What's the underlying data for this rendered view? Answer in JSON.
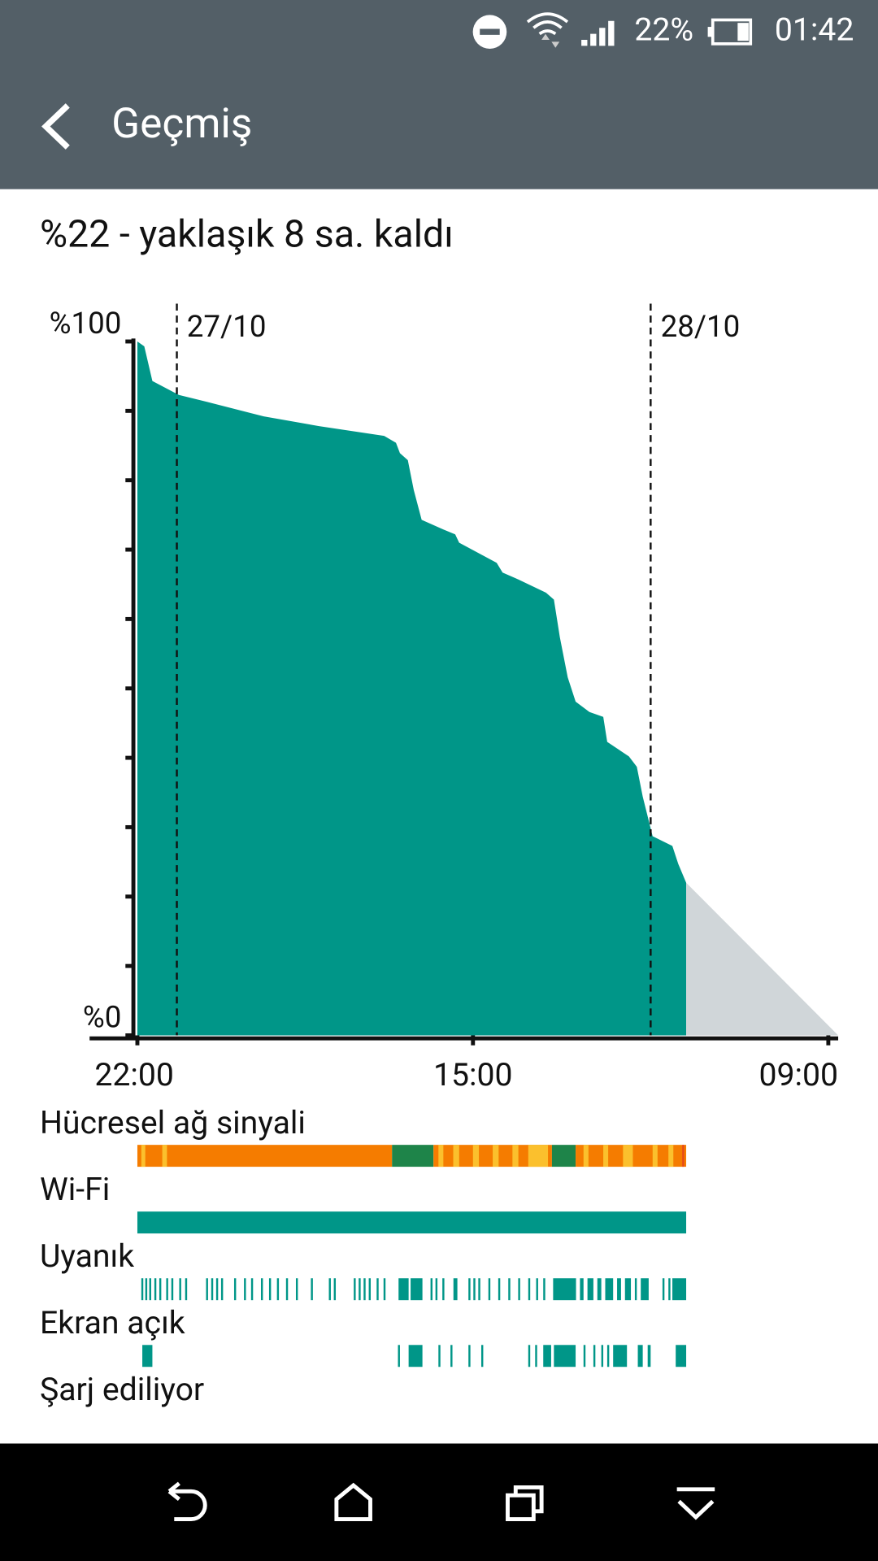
{
  "status_bar": {
    "battery": "22%",
    "time": "01:42"
  },
  "header": {
    "title": "Geçmiş"
  },
  "summary": "%22 - yaklaşık 8 sa. kaldı",
  "chart_data": {
    "type": "area",
    "series": [
      {
        "color": "#009688",
        "x": [
          0,
          0.35,
          0.76,
          2.1,
          3.8,
          6.4,
          9.2,
          12.5,
          13.1,
          13.3,
          13.7,
          14.0,
          14.4,
          15.5,
          16.1,
          16.3,
          18.2,
          18.5,
          19.3,
          20.7,
          21.1,
          21.4,
          21.8,
          22.2,
          22.9,
          23.6,
          23.8,
          24.9,
          25.3,
          25.6,
          26.1,
          27.1,
          27.4,
          27.8
        ],
        "values": [
          100,
          99.3,
          94.3,
          92.3,
          91.1,
          89.2,
          87.8,
          86.4,
          85.4,
          83.9,
          82.9,
          78.6,
          74.3,
          72.9,
          72.2,
          71.0,
          68.1,
          66.7,
          65.7,
          63.8,
          62.8,
          57.4,
          51.6,
          48.1,
          46.6,
          45.9,
          42.3,
          40.2,
          38.7,
          34.4,
          28.7,
          27.3,
          24.7,
          22
        ]
      },
      {
        "color": "#d0d6d9",
        "x": [
          27.8,
          35.5
        ],
        "values": [
          22,
          0
        ]
      }
    ],
    "xlim": [
      0,
      35.5
    ],
    "ylim": [
      0,
      100
    ],
    "xticks": [
      {
        "value": 0,
        "label": "22:00"
      },
      {
        "value": 17,
        "label": "15:00"
      },
      {
        "value": 35,
        "label": "09:00"
      }
    ],
    "yticks": [
      {
        "value": 0,
        "label": "%0"
      },
      {
        "value": 100,
        "label": "%100"
      }
    ],
    "minor_yticks": [
      10,
      20,
      30,
      40,
      50,
      60,
      70,
      80,
      90
    ],
    "date_markers": [
      {
        "value": 2,
        "label": "27/10"
      },
      {
        "value": 26,
        "label": "28/10"
      }
    ],
    "tracks": [
      {
        "label": "Hücresel ağ sinyali",
        "segments": [
          [
            0,
            12.9
          ],
          [
            12.9,
            15.0
          ],
          [
            15.0,
            21.0
          ],
          [
            21.0,
            22.2
          ],
          [
            22.2,
            27.8
          ],
          [
            0.2,
            0.4
          ],
          [
            1.26,
            1.5
          ],
          [
            15.25,
            15.5
          ],
          [
            16.0,
            16.3
          ],
          [
            17.0,
            17.3
          ],
          [
            18.0,
            18.3
          ],
          [
            19.0,
            19.3
          ],
          [
            19.8,
            20.8
          ],
          [
            22.6,
            22.85
          ],
          [
            23.6,
            23.85
          ],
          [
            24.6,
            25.1
          ],
          [
            26.1,
            26.35
          ],
          [
            26.9,
            27.15
          ],
          [
            27.6,
            27.7
          ]
        ],
        "colors": [
          "#f57c00",
          "#1e8449",
          "#f57c00",
          "#1e8449",
          "#f57c00",
          "#fbc02d",
          "#fbc02d",
          "#fbc02d",
          "#fbc02d",
          "#fbc02d",
          "#fbc02d",
          "#fbc02d",
          "#fbc02d",
          "#fbc02d",
          "#fbc02d",
          "#fbc02d",
          "#fbc02d",
          "#fbc02d",
          "#e64a19"
        ]
      },
      {
        "label": "Wi-Fi",
        "color": "#009688",
        "segments": [
          [
            0,
            27.8
          ]
        ]
      },
      {
        "label": "Uyanık",
        "color": "#009688",
        "segments": [
          [
            0.2,
            0.3
          ],
          [
            0.4,
            0.5
          ],
          [
            0.6,
            0.7
          ],
          [
            0.86,
            0.96
          ],
          [
            1.11,
            1.21
          ],
          [
            1.46,
            1.56
          ],
          [
            1.72,
            1.82
          ],
          [
            2.12,
            2.22
          ],
          [
            2.42,
            2.52
          ],
          [
            3.48,
            3.58
          ],
          [
            3.74,
            3.84
          ],
          [
            3.99,
            4.09
          ],
          [
            4.24,
            4.34
          ],
          [
            4.9,
            5.0
          ],
          [
            5.4,
            5.5
          ],
          [
            5.76,
            5.86
          ],
          [
            6.26,
            6.36
          ],
          [
            6.67,
            6.77
          ],
          [
            7.07,
            7.17
          ],
          [
            7.53,
            7.63
          ],
          [
            8.03,
            8.13
          ],
          [
            8.79,
            8.89
          ],
          [
            9.7,
            9.8
          ],
          [
            9.95,
            10.05
          ],
          [
            10.96,
            11.06
          ],
          [
            11.21,
            11.31
          ],
          [
            11.46,
            11.56
          ],
          [
            11.72,
            11.82
          ],
          [
            12.12,
            12.22
          ],
          [
            12.47,
            12.57
          ],
          [
            13.23,
            13.74
          ],
          [
            13.84,
            14.44
          ],
          [
            14.85,
            14.95
          ],
          [
            15.1,
            15.2
          ],
          [
            15.45,
            15.55
          ],
          [
            16.01,
            16.21
          ],
          [
            16.77,
            16.87
          ],
          [
            17.02,
            17.12
          ],
          [
            17.27,
            17.37
          ],
          [
            17.78,
            17.88
          ],
          [
            18.28,
            18.38
          ],
          [
            18.79,
            18.89
          ],
          [
            19.29,
            19.39
          ],
          [
            19.8,
            19.9
          ],
          [
            20.2,
            20.3
          ],
          [
            20.56,
            20.66
          ],
          [
            21.06,
            22.22
          ],
          [
            22.42,
            22.6
          ],
          [
            22.8,
            23.1
          ],
          [
            23.3,
            23.5
          ],
          [
            23.7,
            24.1
          ],
          [
            24.3,
            24.5
          ],
          [
            24.7,
            25.0
          ],
          [
            25.2,
            25.3
          ],
          [
            25.5,
            25.9
          ],
          [
            26.6,
            26.7
          ],
          [
            26.9,
            27.0
          ],
          [
            27.1,
            27.8
          ]
        ]
      },
      {
        "label": "Ekran açık",
        "color": "#009688",
        "segments": [
          [
            0.25,
            0.76
          ],
          [
            13.2,
            13.3
          ],
          [
            13.74,
            14.44
          ],
          [
            15.25,
            15.35
          ],
          [
            15.86,
            15.96
          ],
          [
            16.77,
            16.87
          ],
          [
            17.42,
            17.52
          ],
          [
            19.8,
            19.9
          ],
          [
            20.15,
            20.25
          ],
          [
            20.56,
            20.96
          ],
          [
            21.1,
            22.2
          ],
          [
            22.6,
            22.7
          ],
          [
            23.1,
            23.2
          ],
          [
            23.5,
            23.6
          ],
          [
            23.8,
            23.9
          ],
          [
            24.1,
            24.8
          ],
          [
            25.35,
            25.6
          ],
          [
            25.85,
            26.0
          ],
          [
            27.27,
            27.8
          ]
        ]
      },
      {
        "label": "Şarj ediliyor",
        "color": "#009688",
        "segments": []
      }
    ]
  }
}
